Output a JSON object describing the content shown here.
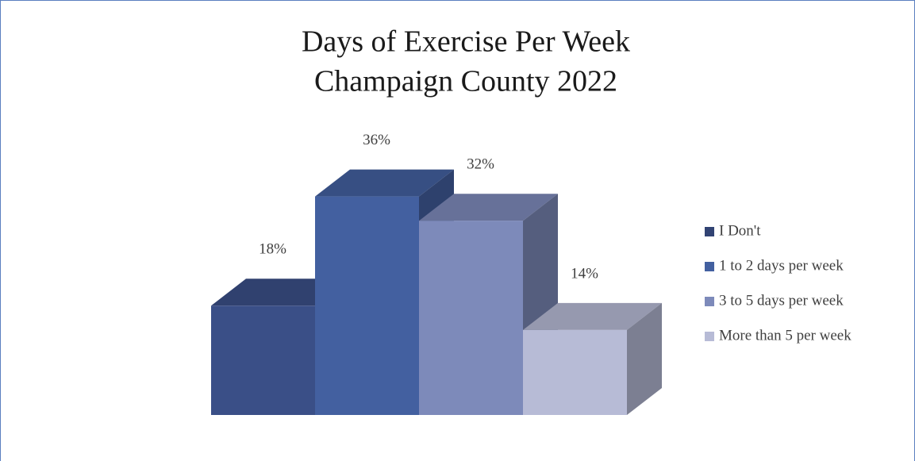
{
  "chart_data": {
    "type": "bar3d",
    "title": [
      "Days of Exercise Per Week",
      "Champaign County 2022"
    ],
    "series": [
      {
        "name": "I Don't",
        "color": "#3a4f87",
        "values": [
          18
        ],
        "value_labels": [
          "18%"
        ]
      },
      {
        "name": "1 to 2 days per week",
        "color": "#4360a0",
        "values": [
          36
        ],
        "value_labels": [
          "36%"
        ]
      },
      {
        "name": "3 to 5 days per week",
        "color": "#7d8aba",
        "values": [
          32
        ],
        "value_labels": [
          "32%"
        ]
      },
      {
        "name": "More than 5 per week",
        "color": "#b7bbd6",
        "values": [
          14
        ],
        "value_labels": [
          "14%"
        ]
      }
    ],
    "legend": "right"
  }
}
